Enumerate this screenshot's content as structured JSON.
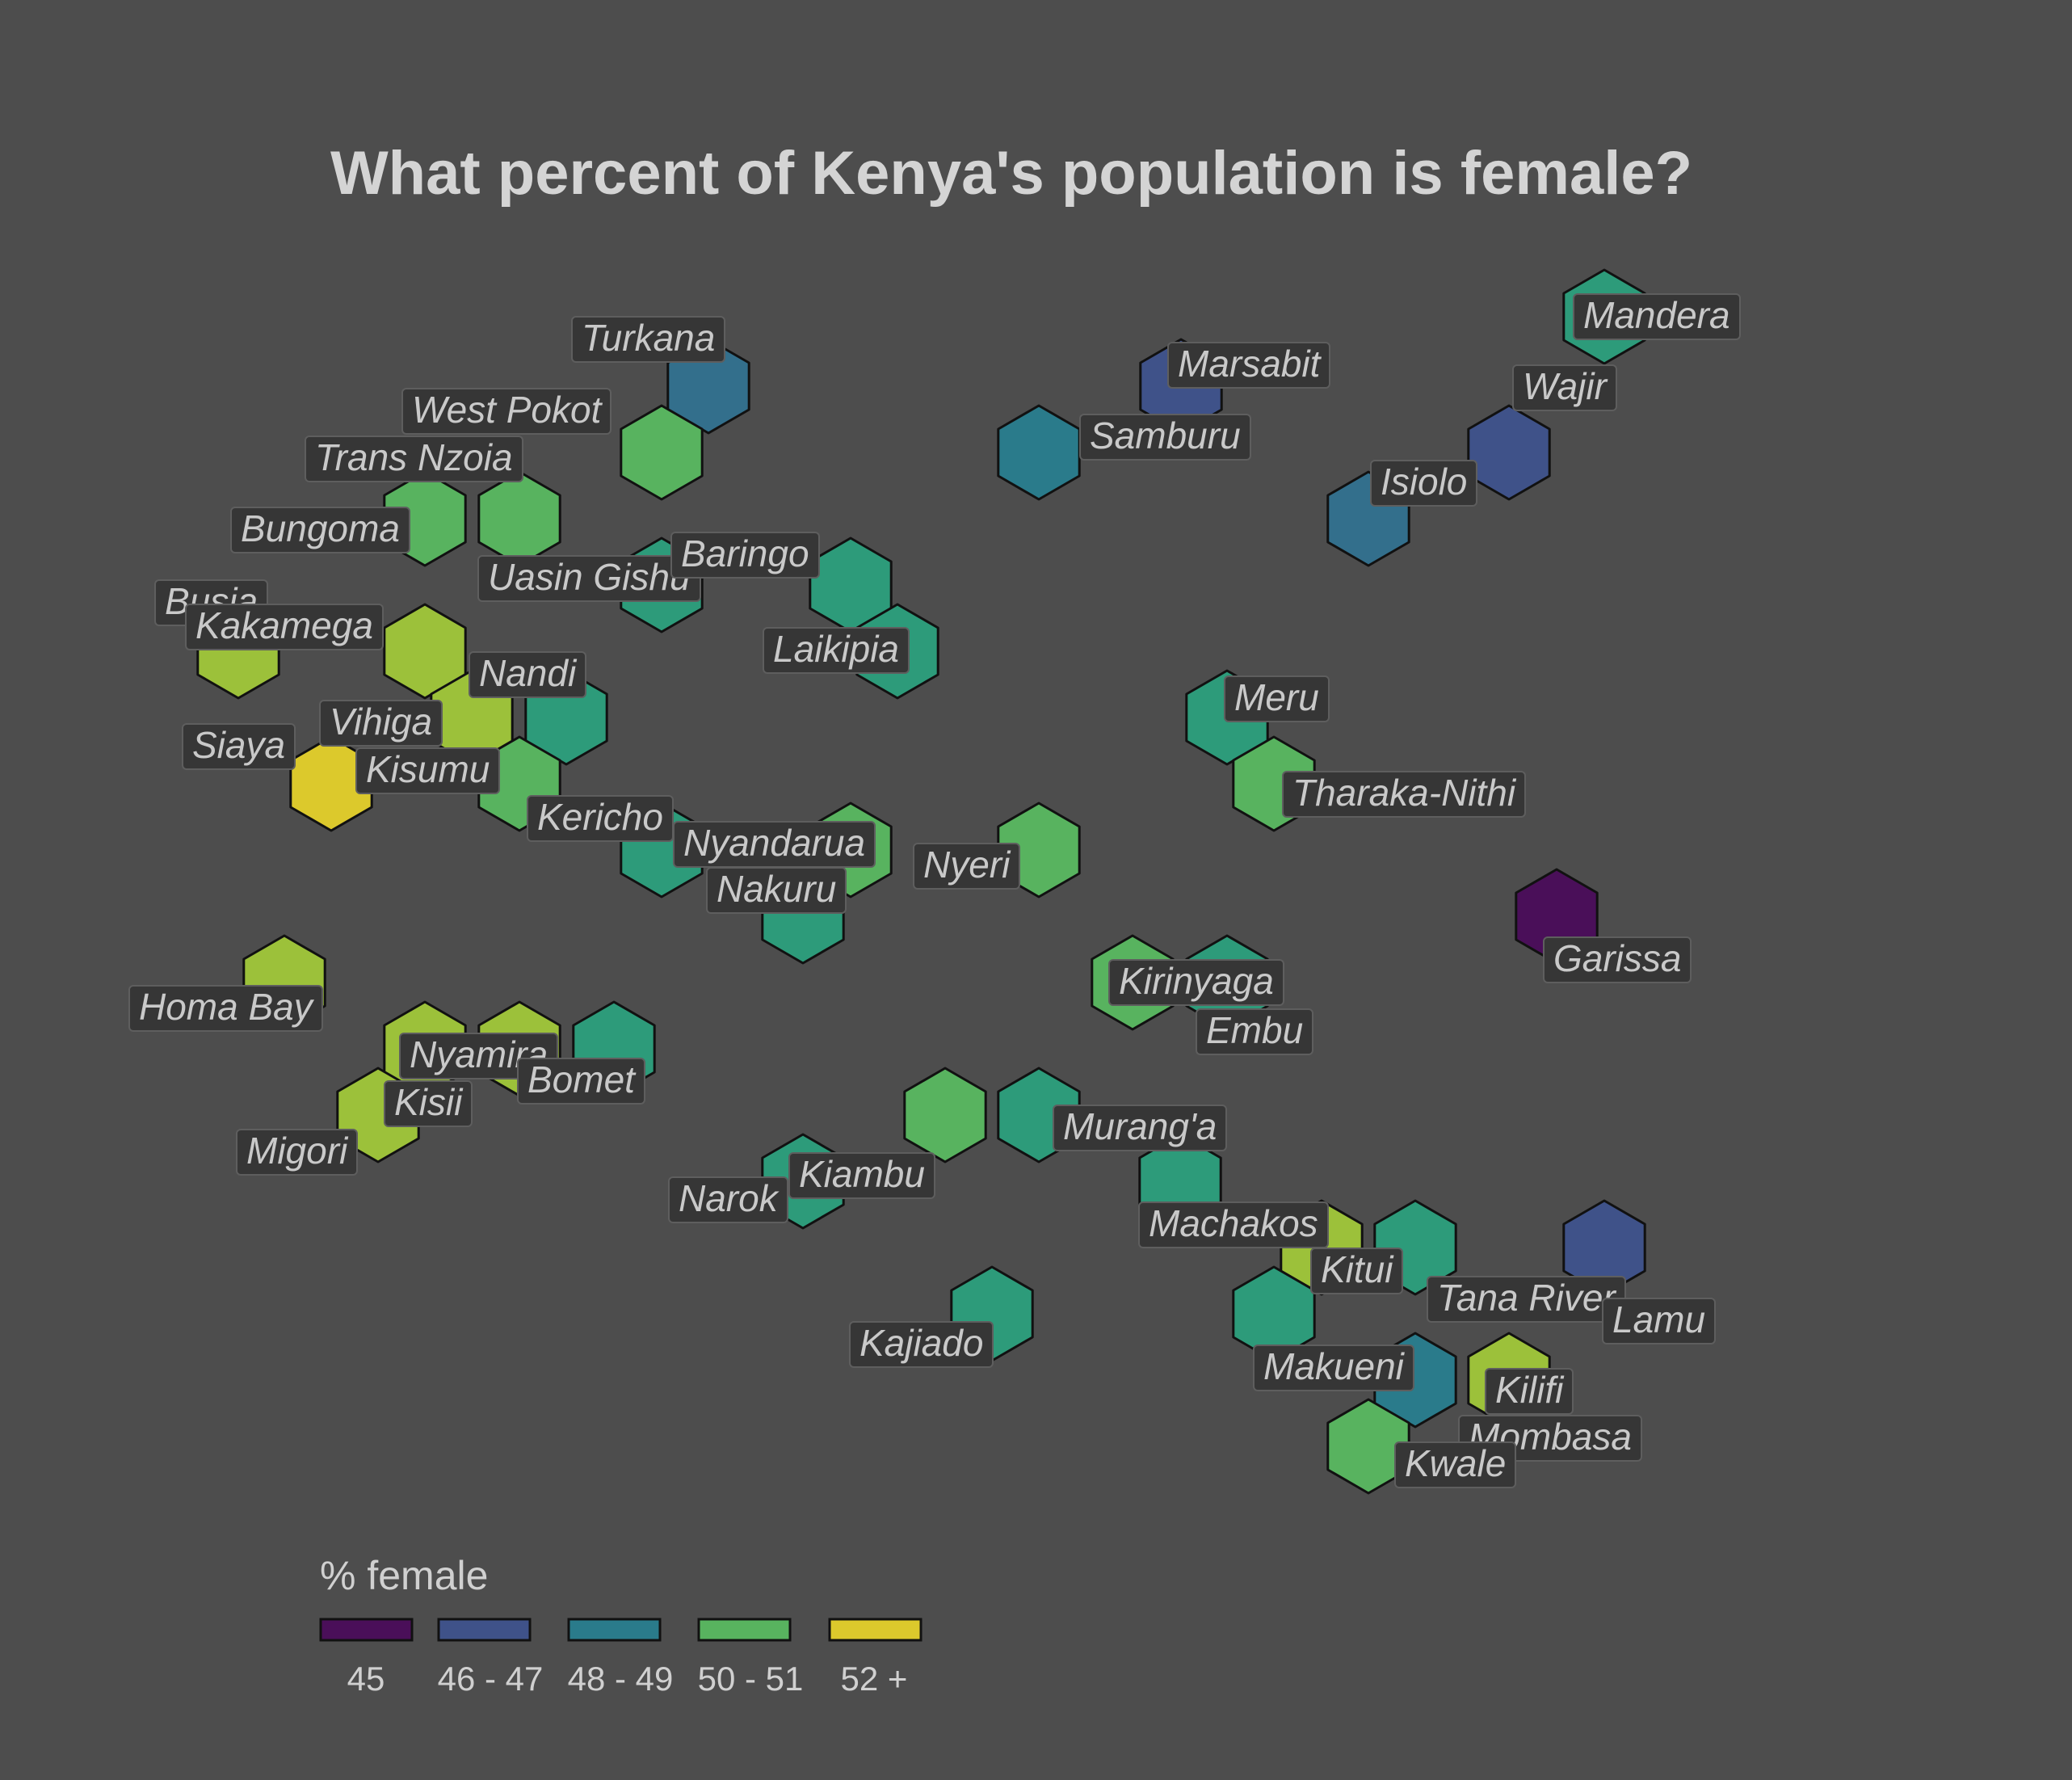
{
  "title": "What percent of Kenya's population is female?",
  "legend": {
    "title": "% female",
    "classes": [
      {
        "label": "45",
        "color": "#4a0f59"
      },
      {
        "label": "46 - 47",
        "color": "#3f5289"
      },
      {
        "label": "48 - 49",
        "color": "#2a7b8b"
      },
      {
        "label": "50 - 51",
        "color": "#58b35f"
      },
      {
        "label": "52 +",
        "color": "#dcc92c"
      }
    ]
  },
  "extra_colors": {
    "48-49_dark": "#336f8c",
    "48-49_green": "#2d9b7a",
    "50-51_lime": "#9cc13a"
  },
  "counties": [
    {
      "name": "Turkana",
      "class": "46 - 47"
    },
    {
      "name": "West Pokot",
      "class": "50 - 51"
    },
    {
      "name": "Marsabit",
      "class": "46 - 47"
    },
    {
      "name": "Samburu",
      "class": "48 - 49"
    },
    {
      "name": "Mandera",
      "class": "48 - 49"
    },
    {
      "name": "Wajir",
      "class": "46 - 47"
    },
    {
      "name": "Isiolo",
      "class": "46 - 47"
    },
    {
      "name": "Trans Nzoia",
      "class": "50 - 51"
    },
    {
      "name": "Bungoma",
      "class": "50 - 51"
    },
    {
      "name": "Uasin Gishu",
      "class": "48 - 49"
    },
    {
      "name": "Baringo",
      "class": "48 - 49"
    },
    {
      "name": "Laikipia",
      "class": "48 - 49"
    },
    {
      "name": "Busia",
      "class": "50 - 51"
    },
    {
      "name": "Kakamega",
      "class": "50 - 51"
    },
    {
      "name": "Nandi",
      "class": "48 - 49"
    },
    {
      "name": "Vihiga",
      "class": "50 - 51"
    },
    {
      "name": "Siaya",
      "class": "52 +"
    },
    {
      "name": "Kisumu",
      "class": "50 - 51"
    },
    {
      "name": "Kericho",
      "class": "48 - 49"
    },
    {
      "name": "Nyandarua",
      "class": "50 - 51"
    },
    {
      "name": "Nakuru",
      "class": "48 - 49"
    },
    {
      "name": "Nyeri",
      "class": "50 - 51"
    },
    {
      "name": "Meru",
      "class": "48 - 49"
    },
    {
      "name": "Tharaka-Nithi",
      "class": "50 - 51"
    },
    {
      "name": "Garissa",
      "class": "45"
    },
    {
      "name": "Homa Bay",
      "class": "50 - 51"
    },
    {
      "name": "Kirinyaga",
      "class": "50 - 51"
    },
    {
      "name": "Embu",
      "class": "48 - 49"
    },
    {
      "name": "Nyamira",
      "class": "50 - 51"
    },
    {
      "name": "Bomet",
      "class": "48 - 49"
    },
    {
      "name": "Kisii",
      "class": "50 - 51"
    },
    {
      "name": "Migori",
      "class": "50 - 51"
    },
    {
      "name": "Murang'a",
      "class": "48 - 49"
    },
    {
      "name": "Kiambu",
      "class": "50 - 51"
    },
    {
      "name": "Narok",
      "class": "48 - 49"
    },
    {
      "name": "Machakos",
      "class": "48 - 49"
    },
    {
      "name": "Kitui",
      "class": "50 - 51"
    },
    {
      "name": "Tana River",
      "class": "48 - 49"
    },
    {
      "name": "Lamu",
      "class": "46 - 47"
    },
    {
      "name": "Kajiado",
      "class": "48 - 49"
    },
    {
      "name": "Makueni",
      "class": "48 - 49"
    },
    {
      "name": "Kilifi",
      "class": "50 - 51"
    },
    {
      "name": "Mombasa",
      "class": "48 - 49"
    },
    {
      "name": "Kwale",
      "class": "50 - 51"
    }
  ]
}
